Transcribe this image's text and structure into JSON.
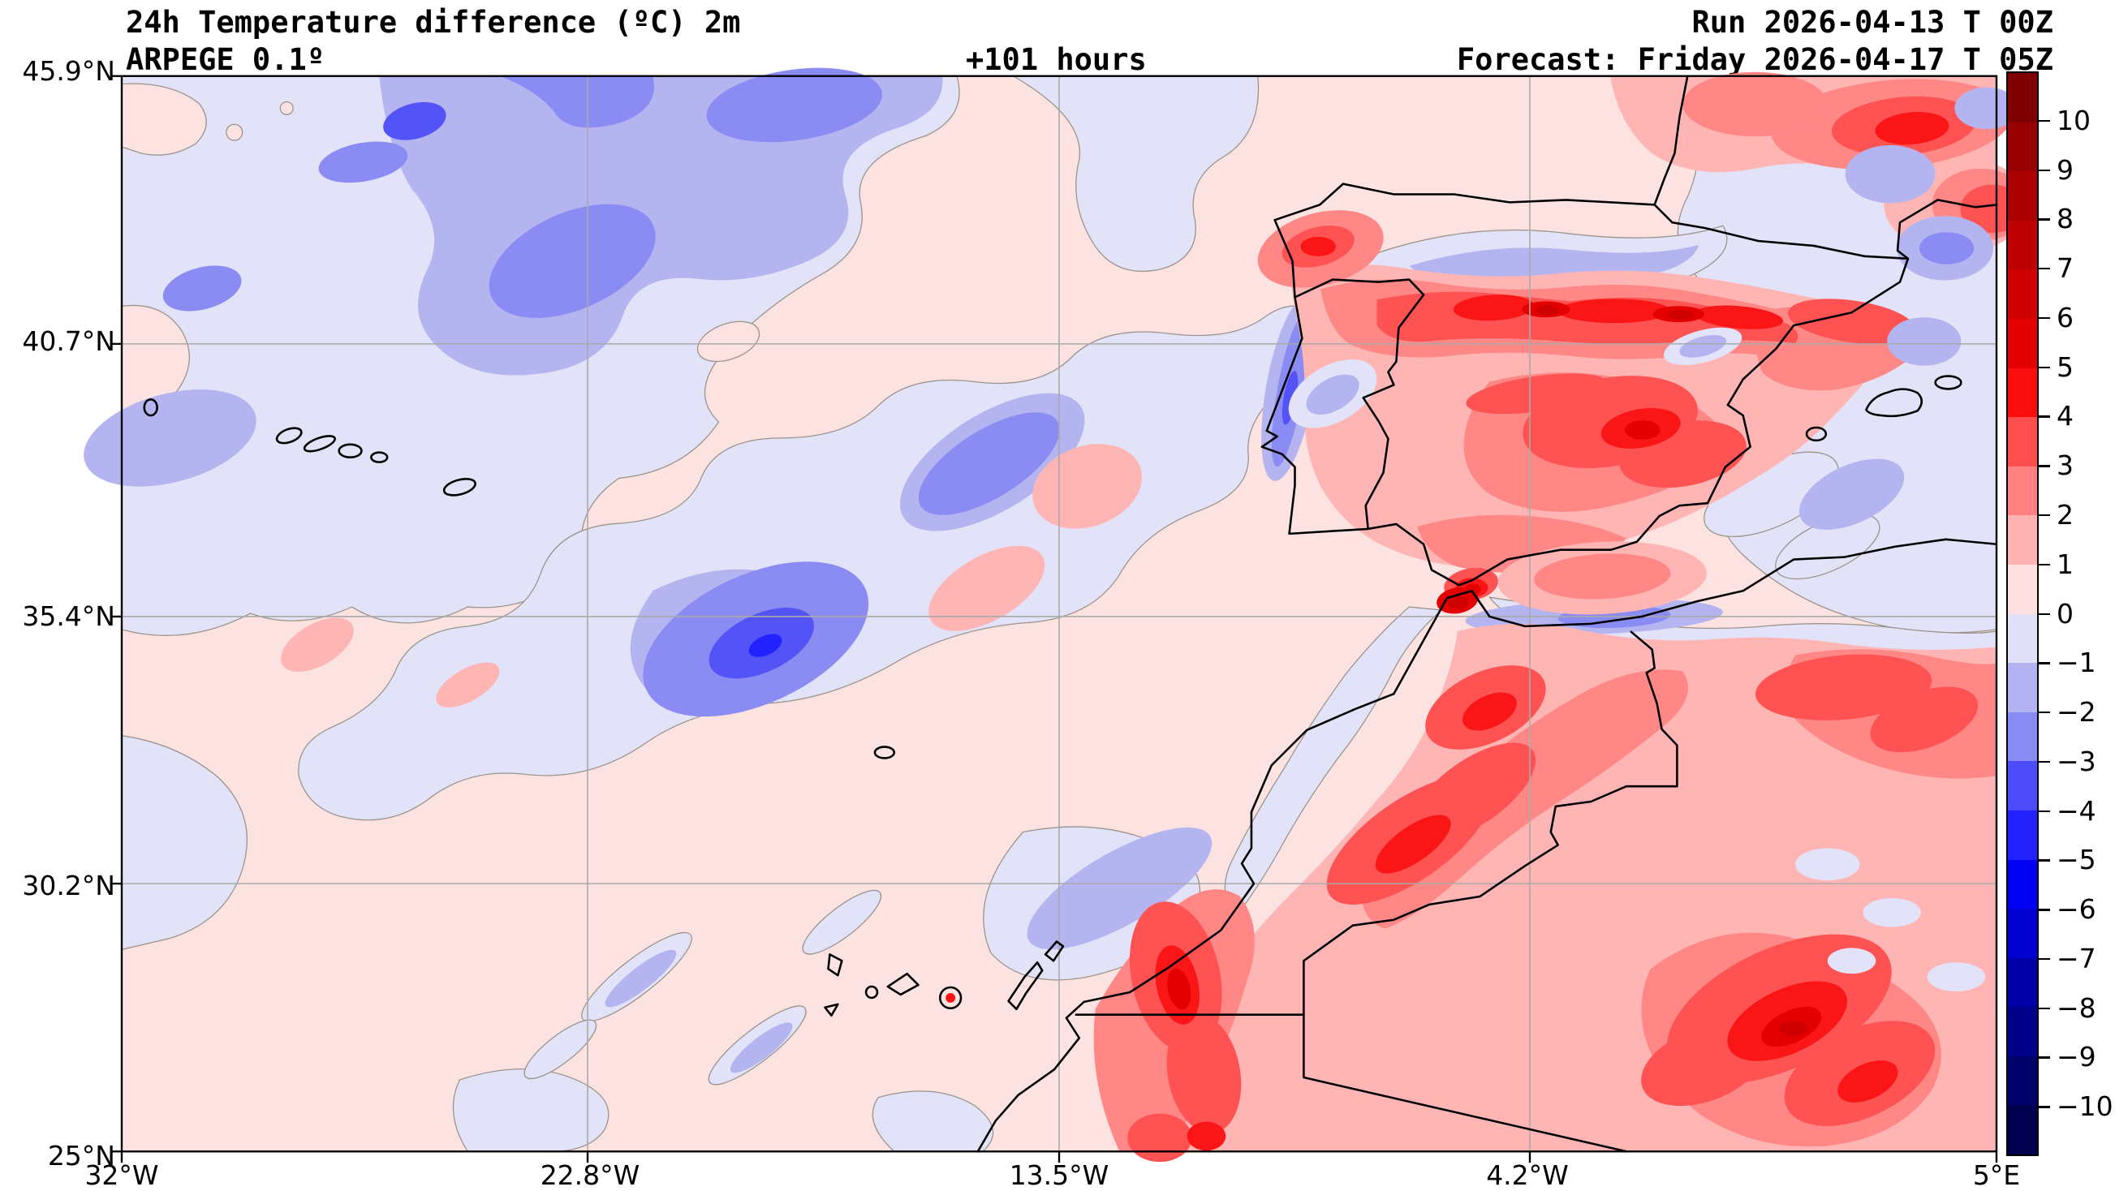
{
  "header": {
    "title_line1": "24h Temperature difference (ºC) 2m",
    "title_line2": "ARPEGE 0.1º",
    "lead_time": "+101 hours",
    "run_line": "Run 2026-04-13 T 00Z",
    "forecast_line": "Forecast: Friday 2026-04-17 T 05Z"
  },
  "axes": {
    "y_ticks": [
      "45.9°N",
      "40.7°N",
      "35.4°N",
      "30.2°N",
      "25°N"
    ],
    "x_ticks": [
      "32°W",
      "22.8°W",
      "13.5°W",
      "4.2°W",
      "5°E"
    ]
  },
  "colorbar": {
    "unit": "ºC",
    "min": -10,
    "max": 10,
    "tick_labels": [
      "10",
      "9",
      "8",
      "7",
      "6",
      "5",
      "4",
      "3",
      "2",
      "1",
      "0",
      "−1",
      "−2",
      "−3",
      "−4",
      "−5",
      "−6",
      "−7",
      "−8",
      "−9",
      "−10"
    ],
    "segments_top_to_bottom": [
      "#7e0000",
      "#970000",
      "#ab0000",
      "#bd0000",
      "#ce0000",
      "#e20000",
      "#fa0d0d",
      "#ff4e4e",
      "#ff8181",
      "#ffb3b3",
      "#ffe0e0",
      "#e1e1f8",
      "#b3b3f2",
      "#8a8af5",
      "#4c4cfa",
      "#2121fe",
      "#0000f3",
      "#0000d0",
      "#0000a6",
      "#000088",
      "#00006a",
      "#00004e"
    ]
  },
  "map": {
    "extent": {
      "lon_min": -32,
      "lon_max": 5,
      "lat_min": 25,
      "lat_max": 45.9
    },
    "gridline_color": "#a9a9a9",
    "coastline_color": "#000000",
    "zero_contour_color": "#9b948b",
    "palette": {
      "pink0": "#fce2e1",
      "salmon1": "#ffb5b4",
      "red2": "#ff8786",
      "red3": "#ff5252",
      "red4": "#fa1616",
      "red5": "#e20000",
      "red6": "#ce0000",
      "lav": "#e2e2f8",
      "per2": "#b4b4f1",
      "per3": "#8b8bf4",
      "blue4": "#5353f7",
      "blue5": "#2222fe"
    },
    "regions_summary": [
      {
        "area": "NE Atlantic (NW corner)",
        "anomaly": "cooling -1 to -4 °C"
      },
      {
        "area": "central Atlantic band",
        "anomaly": "cooling -1 to -4 °C"
      },
      {
        "area": "northern Spain / Pyrenees",
        "anomaly": "warming +3 to +7 °C"
      },
      {
        "area": "central Iberia",
        "anomaly": "warming +2 to +5 °C"
      },
      {
        "area": "west Portugal coast",
        "anomaly": "cooling -1 to -3 °C"
      },
      {
        "area": "southern France",
        "anomaly": "warming +2 to +5 °C with cool pockets"
      },
      {
        "area": "Alboran sea coast",
        "anomaly": "cooling -1 to -3 °C"
      },
      {
        "area": "Morocco Atlas",
        "anomaly": "warming +2 to +5 °C"
      },
      {
        "area": "Algeria interior",
        "anomaly": "warming +2 to +6 °C"
      },
      {
        "area": "Western Sahara coast",
        "anomaly": "warming +3 to +6 °C"
      },
      {
        "area": "Canary Islands",
        "anomaly": "warming +1 to +5 °C on islands"
      }
    ]
  }
}
